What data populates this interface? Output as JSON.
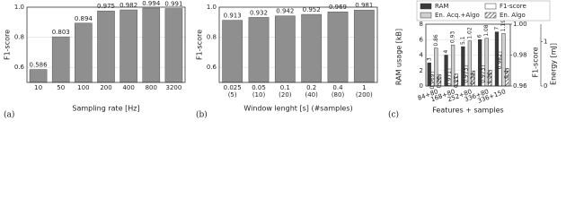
{
  "chart_data": [
    {
      "type": "bar",
      "panel_label": "(a)",
      "x_label": "Sampling rate [Hz]",
      "y_label": "F1-score",
      "categories": [
        [
          "10"
        ],
        [
          "50"
        ],
        [
          "100"
        ],
        [
          "200"
        ],
        [
          "400"
        ],
        [
          "800"
        ],
        [
          "3200"
        ]
      ],
      "values": [
        0.586,
        0.803,
        0.894,
        0.975,
        0.982,
        0.994,
        0.991
      ],
      "color": "#8f8f8f",
      "ylim": [
        0.5,
        1.0
      ],
      "yticks": [
        0.6,
        0.8,
        {
          "value": 1,
          "label": "1.0"
        }
      ],
      "grid": true
    },
    {
      "type": "bar",
      "panel_label": "(b)",
      "x_label": "Window lenght [s] (#samples)",
      "y_label": "F1-score",
      "categories": [
        [
          "0.025",
          "(5)"
        ],
        [
          "0.05",
          "(10)"
        ],
        [
          "0.1",
          "(20)"
        ],
        [
          "0.2",
          "(40)"
        ],
        [
          "0.4",
          "(80)"
        ],
        [
          "1",
          "(200)"
        ]
      ],
      "values": [
        0.913,
        0.932,
        0.942,
        0.952,
        0.969,
        0.981
      ],
      "color": "#8f8f8f",
      "ylim": [
        0.5,
        1.0
      ],
      "yticks": [
        0.6,
        0.8,
        {
          "value": 1,
          "label": "1.0"
        }
      ],
      "grid": true
    },
    {
      "type": "grouped_bar",
      "panel_label": "(c)",
      "x_label": "Features + samples",
      "y_label": "RAM usage [kB]",
      "y2_label": "F1-score",
      "y3_label": "Energy [mJ]",
      "categories": [
        "84+80",
        "168+80",
        "252+80",
        "336+80",
        "336+150"
      ],
      "series": [
        {
          "name": "RAM",
          "color": "#3a3a3a",
          "axis": "y",
          "values": [
            3,
            4,
            5.1,
            6,
            7
          ]
        },
        {
          "name": "F1-score",
          "color": "#ffffff",
          "axis": "y2",
          "values": [
            0.969,
            0.971,
            0.973,
            0.973,
            0.982
          ]
        },
        {
          "name": "En. Acq.+Algo",
          "color": "#d0d0d0",
          "axis": "y3",
          "values": [
            0.86,
            0.93,
            1.02,
            1.08,
            1.19
          ]
        },
        {
          "name": "En. Algo",
          "color": "#ffffff",
          "axis": "y3",
          "hatch": true,
          "values": [
            0.26,
            0.27,
            0.34,
            0.36,
            0.4
          ]
        }
      ],
      "ylim": [
        0,
        8
      ],
      "yticks": [
        0,
        2,
        4,
        6,
        8
      ],
      "y2lim": [
        0.96,
        1.0
      ],
      "y2ticks": [
        0.96,
        0.98,
        {
          "value": 1,
          "label": "1.00"
        }
      ],
      "y3lim": [
        0,
        1.4
      ],
      "y3ticks": [
        0,
        1
      ],
      "legend": "top",
      "grid": true
    }
  ]
}
